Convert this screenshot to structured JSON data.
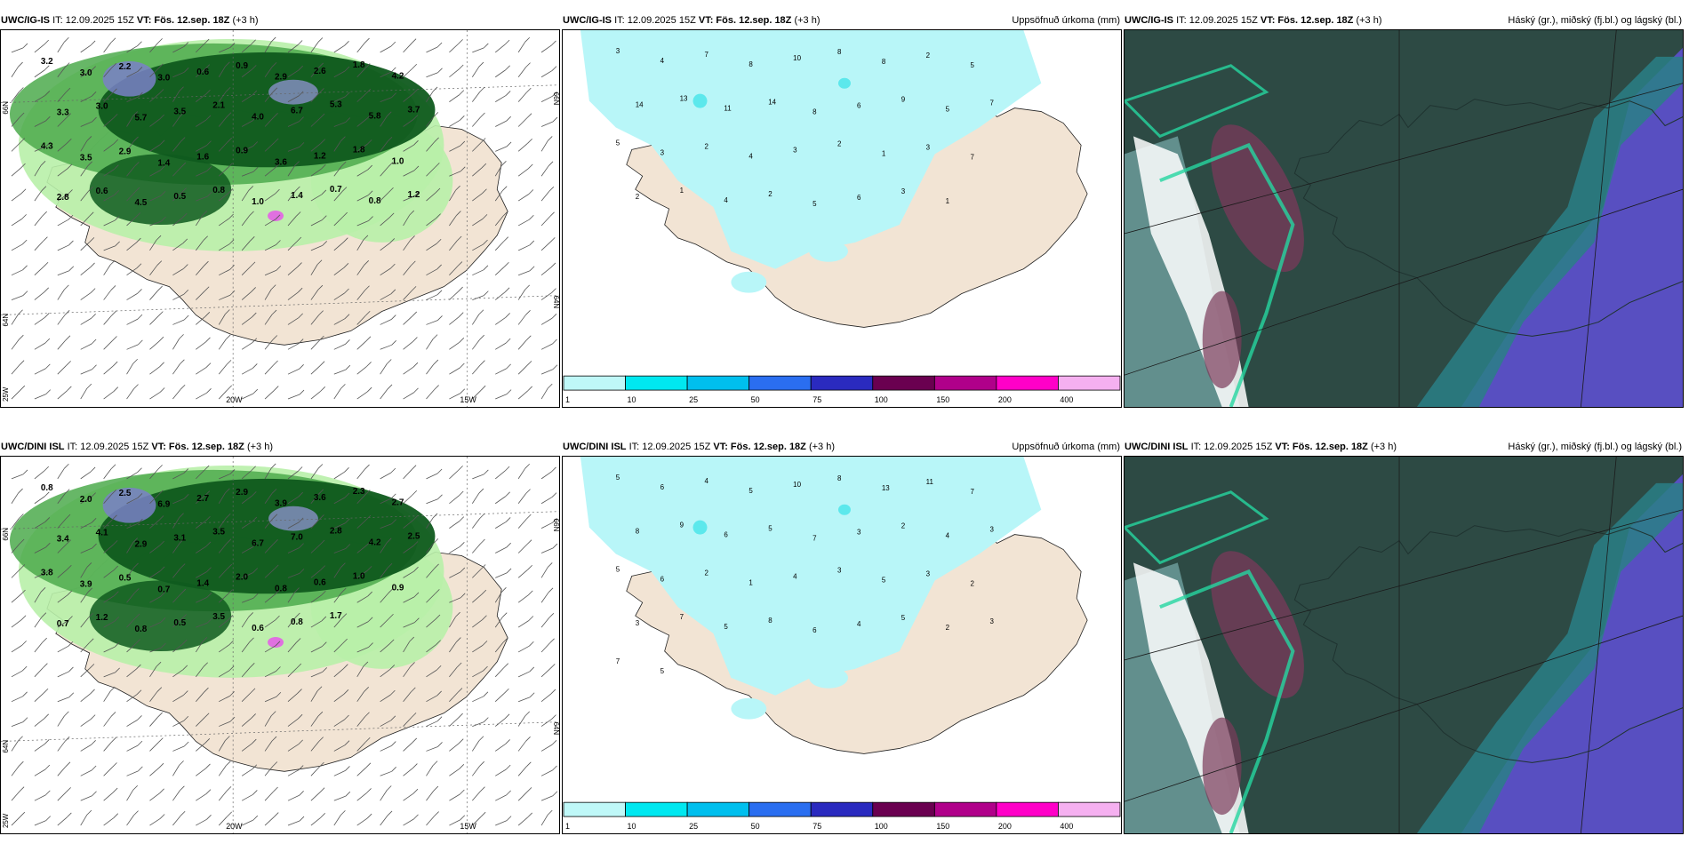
{
  "row1": {
    "model": "UWC/IG-IS",
    "it_label": "IT: 12.09.2025 15Z",
    "vt_label": "VT: Fös. 12.sep. 18Z",
    "lead": "(+3 h)"
  },
  "row2": {
    "model": "UWC/DINI ISL",
    "it_label": "IT: 12.09.2025 15Z",
    "vt_label": "VT: Fös. 12.sep. 18Z",
    "lead": "(+3 h)"
  },
  "precip_title": "Uppsöfnuð úrkoma (mm)",
  "cloud_title": "Háský (gr.), miðský (fj.bl.) og lágský (bl.)",
  "axes": {
    "lon_labels": [
      "20W",
      "15W"
    ],
    "lat_labels": [
      "66N",
      "64N"
    ],
    "corner_label": "25W",
    "right_labels": [
      "66N",
      "64N"
    ]
  },
  "colorbar": {
    "ticks": [
      "1",
      "10",
      "25",
      "50",
      "75",
      "100",
      "150",
      "200",
      "400"
    ],
    "colors": [
      "#bff8f8",
      "#00e8f0",
      "#00bfee",
      "#2a6ef0",
      "#2a2abf",
      "#6a0050",
      "#b0008a",
      "#ff00c8",
      "#f5b0f0"
    ]
  },
  "colors": {
    "land": "#f2e4d4",
    "precip_shade": "#b8f6f8",
    "humidity_dark": "#0f5a1e",
    "humidity_light": "#b8f0a8",
    "cloud_base": "#2d4a44",
    "cloud_sea": "#5b4fc8"
  },
  "row1_wind": {
    "values": [
      "3.2",
      "3.0",
      "2.2",
      "3.0",
      "0.6",
      "0.9",
      "2.9",
      "2.6",
      "1.8",
      "4.2",
      "3.3",
      "3.0",
      "5.7",
      "3.5",
      "2.1",
      "4.0",
      "6.7",
      "5.3",
      "5.8",
      "3.7",
      "4.3",
      "3.5",
      "2.9",
      "1.4",
      "1.6",
      "0.9",
      "3.6",
      "1.2",
      "1.8",
      "1.0",
      "2.8",
      "0.6",
      "4.5",
      "0.5",
      "0.8",
      "1.0",
      "1.4",
      "0.7",
      "0.8",
      "1.2"
    ]
  },
  "row2_wind": {
    "values": [
      "0.8",
      "2.0",
      "2.5",
      "6.9",
      "2.7",
      "2.9",
      "3.9",
      "3.6",
      "2.3",
      "2.7",
      "3.4",
      "4.1",
      "2.9",
      "3.1",
      "3.5",
      "6.7",
      "7.0",
      "2.8",
      "4.2",
      "2.5",
      "3.8",
      "3.9",
      "0.5",
      "0.7",
      "1.4",
      "2.0",
      "0.8",
      "0.6",
      "1.0",
      "0.9",
      "0.7",
      "1.2",
      "0.8",
      "0.5",
      "3.5",
      "0.6",
      "0.8",
      "1.7"
    ]
  },
  "row1_precip": {
    "values": [
      "3",
      "4",
      "7",
      "8",
      "10",
      "8",
      "8",
      "2",
      "5",
      "14",
      "13",
      "11",
      "14",
      "8",
      "6",
      "9",
      "5",
      "7",
      "5",
      "3",
      "2",
      "4",
      "3",
      "2",
      "1",
      "3",
      "7",
      "2",
      "1",
      "4",
      "2",
      "5",
      "6",
      "3",
      "1"
    ]
  },
  "row2_precip": {
    "values": [
      "5",
      "6",
      "4",
      "5",
      "10",
      "8",
      "13",
      "11",
      "7",
      "8",
      "9",
      "6",
      "5",
      "7",
      "3",
      "2",
      "4",
      "3",
      "5",
      "6",
      "2",
      "1",
      "4",
      "3",
      "5",
      "3",
      "2",
      "3",
      "7",
      "5",
      "8",
      "6",
      "4",
      "5",
      "2",
      "3",
      "7",
      "5"
    ]
  }
}
